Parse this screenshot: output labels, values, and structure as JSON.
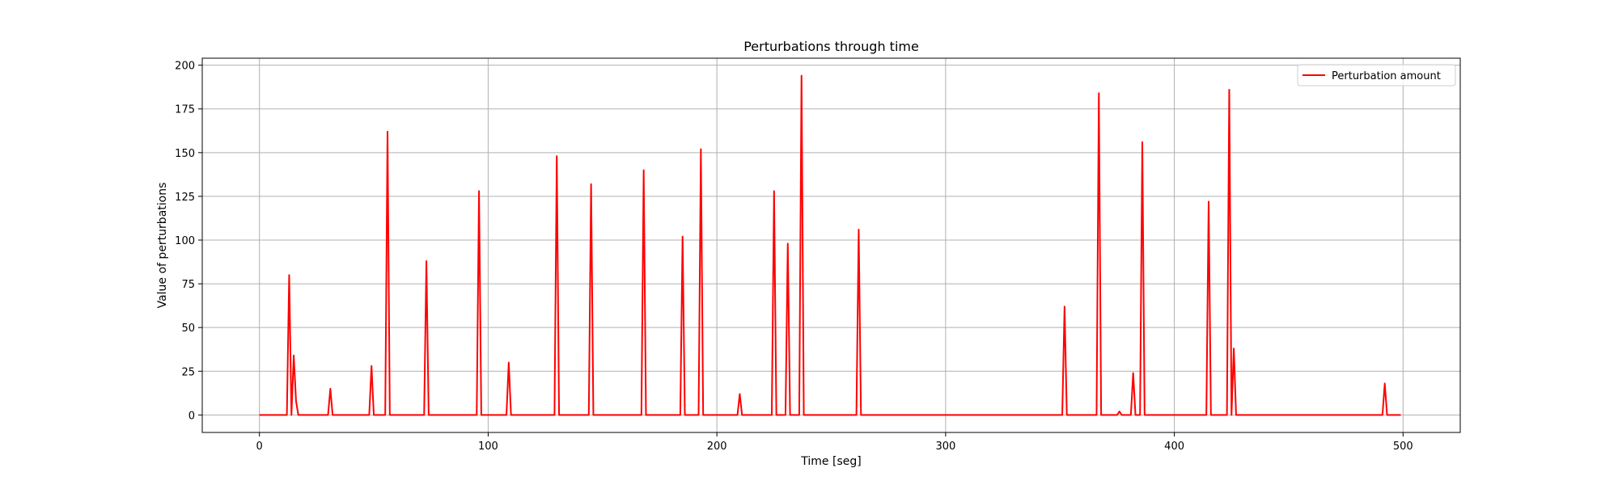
{
  "chart_data": {
    "type": "line",
    "title": "Perturbations through time",
    "xlabel": "Time [seg]",
    "ylabel": "Value of perturbations",
    "xlim": [
      -25,
      525
    ],
    "ylim": [
      -10,
      204
    ],
    "xticks": [
      0,
      100,
      200,
      300,
      400,
      500
    ],
    "yticks": [
      0,
      25,
      50,
      75,
      100,
      125,
      150,
      175,
      200
    ],
    "grid": true,
    "legend_position": "top-right",
    "series": [
      {
        "name": "Perturbation amount",
        "color": "#ff0000",
        "points": [
          [
            0,
            0
          ],
          [
            12,
            0
          ],
          [
            13,
            80
          ],
          [
            14,
            0
          ],
          [
            15,
            34
          ],
          [
            16,
            8
          ],
          [
            17,
            0
          ],
          [
            30,
            0
          ],
          [
            31,
            15
          ],
          [
            32,
            0
          ],
          [
            48,
            0
          ],
          [
            49,
            28
          ],
          [
            50,
            0
          ],
          [
            55,
            0
          ],
          [
            56,
            162
          ],
          [
            57,
            0
          ],
          [
            72,
            0
          ],
          [
            73,
            88
          ],
          [
            74,
            0
          ],
          [
            95,
            0
          ],
          [
            96,
            128
          ],
          [
            97,
            0
          ],
          [
            108,
            0
          ],
          [
            109,
            30
          ],
          [
            110,
            0
          ],
          [
            129,
            0
          ],
          [
            130,
            148
          ],
          [
            131,
            0
          ],
          [
            144,
            0
          ],
          [
            145,
            132
          ],
          [
            146,
            0
          ],
          [
            167,
            0
          ],
          [
            168,
            140
          ],
          [
            169,
            0
          ],
          [
            184,
            0
          ],
          [
            185,
            102
          ],
          [
            186,
            0
          ],
          [
            192,
            0
          ],
          [
            193,
            152
          ],
          [
            194,
            0
          ],
          [
            209,
            0
          ],
          [
            210,
            12
          ],
          [
            211,
            0
          ],
          [
            224,
            0
          ],
          [
            225,
            128
          ],
          [
            226,
            0
          ],
          [
            230,
            0
          ],
          [
            231,
            98
          ],
          [
            232,
            0
          ],
          [
            236,
            0
          ],
          [
            237,
            194
          ],
          [
            238,
            0
          ],
          [
            261,
            0
          ],
          [
            262,
            106
          ],
          [
            263,
            0
          ],
          [
            351,
            0
          ],
          [
            352,
            62
          ],
          [
            353,
            0
          ],
          [
            366,
            0
          ],
          [
            367,
            184
          ],
          [
            368,
            0
          ],
          [
            375,
            0
          ],
          [
            376,
            2
          ],
          [
            377,
            0
          ],
          [
            381,
            0
          ],
          [
            382,
            24
          ],
          [
            383,
            0
          ],
          [
            385,
            0
          ],
          [
            386,
            156
          ],
          [
            387,
            0
          ],
          [
            414,
            0
          ],
          [
            415,
            122
          ],
          [
            416,
            0
          ],
          [
            423,
            0
          ],
          [
            424,
            186
          ],
          [
            425,
            0
          ],
          [
            426,
            38
          ],
          [
            427,
            0
          ],
          [
            491,
            0
          ],
          [
            492,
            18
          ],
          [
            493,
            0
          ],
          [
            499,
            0
          ]
        ]
      }
    ]
  }
}
